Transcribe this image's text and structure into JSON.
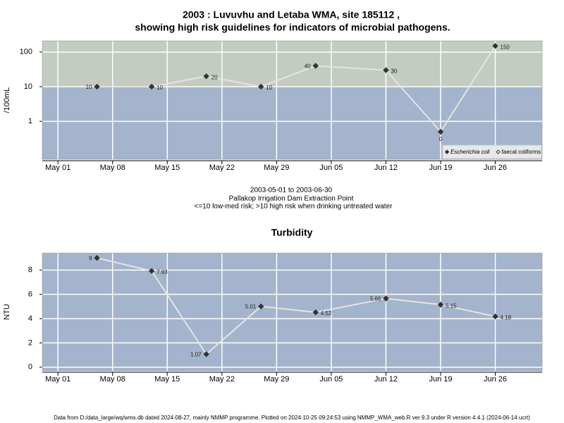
{
  "chart_data": [
    {
      "type": "line",
      "title": "2003 : Luvuvhu and Letaba WMA, site 185112 ,",
      "subtitle": "showing high risk guidelines for indicators of microbial pathogens.",
      "y_label": "/100mL",
      "annotations": [
        "2003-05-01 to 2003-06-30",
        "Pallakop Irrigation Dam Extraction Point",
        "<=10 low-med risk; >10 high risk when drinking untreated water"
      ],
      "x": [
        "2003-05-06",
        "2003-05-13",
        "2003-05-20",
        "2003-05-27",
        "2003-06-03",
        "2003-06-12",
        "2003-06-19",
        "2003-06-26"
      ],
      "series": [
        {
          "name": "Escherichia coli",
          "color": "#333333",
          "marker": "filled",
          "italic": true,
          "values": [
            10,
            10,
            20,
            10,
            40,
            30,
            0.5,
            150
          ],
          "value_labels": [
            "10",
            "10",
            "20",
            "10",
            "40",
            "30",
            "0",
            "150"
          ]
        },
        {
          "name": "faecal coliforms",
          "color": "#333333",
          "marker": "open",
          "italic": false,
          "values": [
            null,
            null,
            null,
            null,
            null,
            null,
            null,
            null
          ]
        }
      ],
      "log_y": true,
      "ylim": [
        0.08,
        210
      ],
      "yticks": [
        1,
        10,
        100
      ],
      "xlim": [
        "2003-04-29",
        "2003-07-02"
      ],
      "xticks": [
        {
          "value": "2003-05-01",
          "label": "May 01"
        },
        {
          "value": "2003-05-08",
          "label": "May 08"
        },
        {
          "value": "2003-05-15",
          "label": "May 15"
        },
        {
          "value": "2003-05-22",
          "label": "May 22"
        },
        {
          "value": "2003-05-29",
          "label": "May 29"
        },
        {
          "value": "2003-06-05",
          "label": "Jun 05"
        },
        {
          "value": "2003-06-12",
          "label": "Jun 12"
        },
        {
          "value": "2003-06-19",
          "label": "Jun 19"
        },
        {
          "value": "2003-06-26",
          "label": "Jun 26"
        }
      ],
      "grid": true,
      "threshold": 10,
      "background": "#a3b4cc",
      "high_risk_color": "#c2ccc0",
      "line_color": "#e4e4e4",
      "legend": "bottom-right"
    },
    {
      "type": "line",
      "title": "Turbidity",
      "y_label": "NTU",
      "x": [
        "2003-05-06",
        "2003-05-13",
        "2003-05-20",
        "2003-05-27",
        "2003-06-03",
        "2003-06-12",
        "2003-06-19",
        "2003-06-26"
      ],
      "series": [
        {
          "name": "Turbidity",
          "color": "#333333",
          "marker": "filled",
          "values": [
            9,
            7.93,
            1.07,
            5.01,
            4.52,
            5.66,
            5.15,
            4.18
          ]
        }
      ],
      "log_y": false,
      "ylim": [
        -0.3,
        9.4
      ],
      "yticks": [
        0,
        2,
        4,
        6,
        8
      ],
      "xlim": [
        "2003-04-29",
        "2003-07-02"
      ],
      "xticks": [
        {
          "value": "2003-05-01",
          "label": "May 01"
        },
        {
          "value": "2003-05-08",
          "label": "May 08"
        },
        {
          "value": "2003-05-15",
          "label": "May 15"
        },
        {
          "value": "2003-05-22",
          "label": "May 22"
        },
        {
          "value": "2003-05-29",
          "label": "May 29"
        },
        {
          "value": "2003-06-05",
          "label": "Jun 05"
        },
        {
          "value": "2003-06-12",
          "label": "Jun 12"
        },
        {
          "value": "2003-06-19",
          "label": "Jun 19"
        },
        {
          "value": "2003-06-26",
          "label": "Jun 26"
        }
      ],
      "grid": true,
      "background": "#a3b4cc",
      "line_color": "#e4e4e4"
    }
  ],
  "footer": "Data from D:/data_large/wq/wms.db dated 2024-08-27, mainly NMMP programme. Plotted on 2024-10-25 09:24:53 using NMMP_WMA_web.R ver 9.3 under R version 4.4.1 (2024-06-14 ucrt)"
}
